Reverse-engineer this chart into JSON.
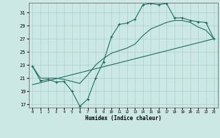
{
  "xlabel": "Humidex (Indice chaleur)",
  "ylabel": "",
  "xlim": [
    -0.5,
    23.5
  ],
  "ylim": [
    16.5,
    32.5
  ],
  "xticks": [
    0,
    1,
    2,
    3,
    4,
    5,
    6,
    7,
    8,
    9,
    10,
    11,
    12,
    13,
    14,
    15,
    16,
    17,
    18,
    19,
    20,
    21,
    22,
    23
  ],
  "yticks": [
    17,
    19,
    21,
    23,
    25,
    27,
    29,
    31
  ],
  "background_color": "#cce8e4",
  "grid_color": "#b0d4d0",
  "line_color": "#1a6b5e",
  "line1_x": [
    0,
    1,
    2,
    3,
    4,
    5,
    6,
    7,
    8,
    9,
    10,
    11,
    12,
    13,
    14,
    15,
    16,
    17,
    18,
    19,
    20,
    21,
    22,
    23
  ],
  "line1_y": [
    22.8,
    20.6,
    20.8,
    20.4,
    20.5,
    19.0,
    16.7,
    17.8,
    21.0,
    23.5,
    27.3,
    29.2,
    29.4,
    30.0,
    32.2,
    32.4,
    32.2,
    32.4,
    30.2,
    30.2,
    29.8,
    29.6,
    29.5,
    27.0
  ],
  "line2_x": [
    0,
    1,
    2,
    3,
    4,
    5,
    6,
    7,
    8,
    9,
    10,
    11,
    12,
    13,
    14,
    15,
    16,
    17,
    18,
    19,
    20,
    21,
    22,
    23
  ],
  "line2_y": [
    22.8,
    21.0,
    21.0,
    21.0,
    20.8,
    20.5,
    20.2,
    21.5,
    23.0,
    24.0,
    24.8,
    25.2,
    25.6,
    26.2,
    27.5,
    28.5,
    29.0,
    29.5,
    29.8,
    29.8,
    29.5,
    28.8,
    28.3,
    27.0
  ],
  "trend_x": [
    0,
    23
  ],
  "trend_y": [
    20.0,
    27.0
  ]
}
